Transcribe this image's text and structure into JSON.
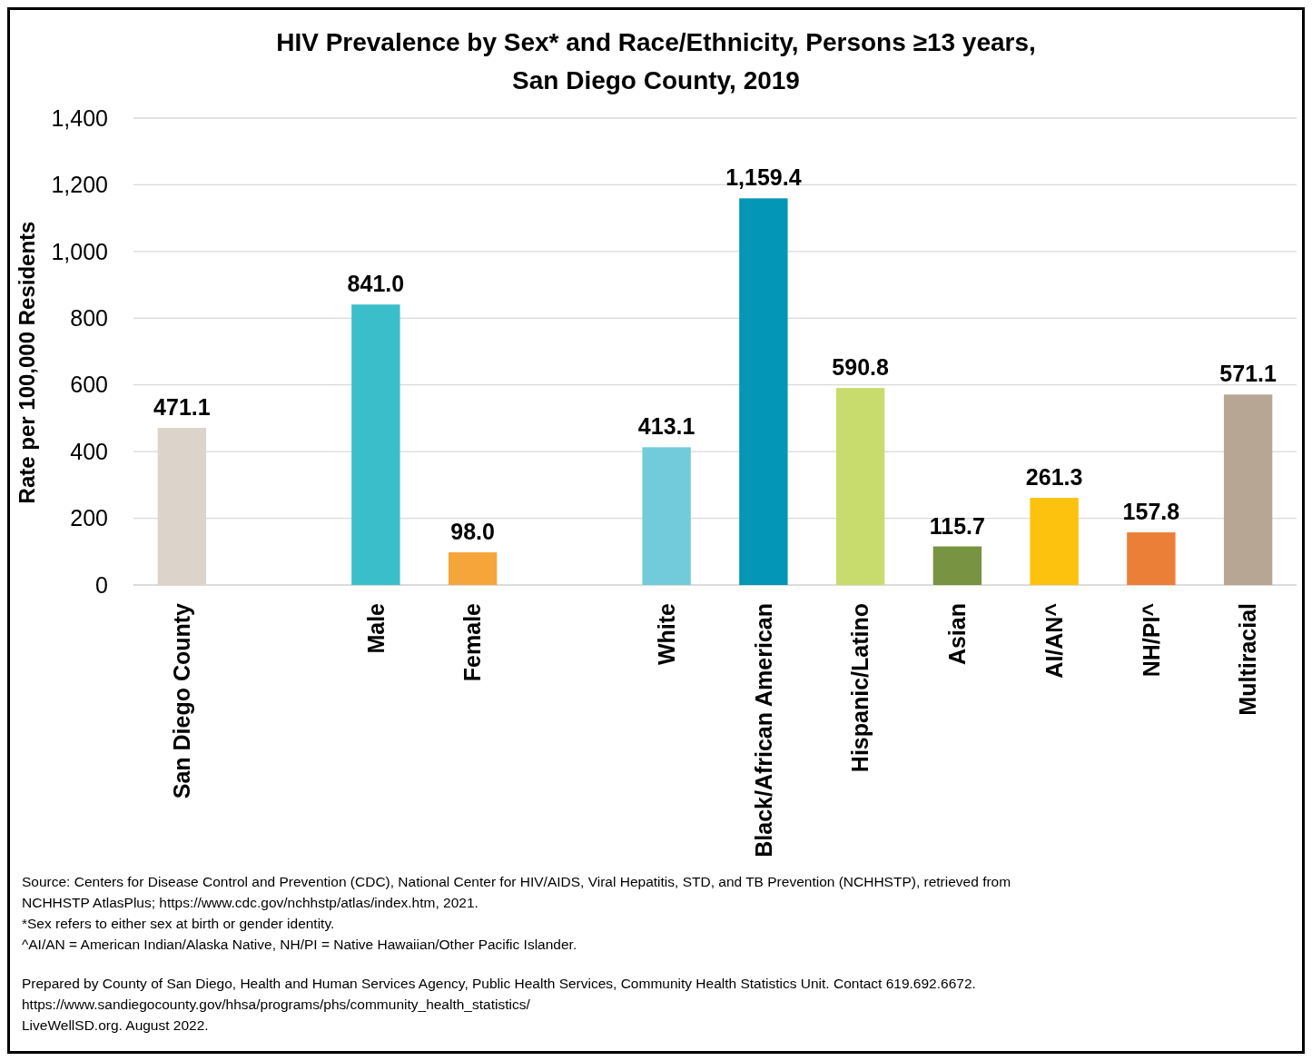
{
  "chart_data": {
    "type": "bar",
    "title": "HIV Prevalence by Sex* and Race/Ethnicity, Persons ≥13 years, San Diego County, 2019",
    "ylabel": "Rate per 100,000 Residents",
    "categories": [
      "San Diego County",
      null,
      "Male",
      "Female",
      null,
      "White",
      "Black/African American",
      "Hispanic/Latino",
      "Asian",
      "AI/AN^",
      "NH/PI^",
      "Multiracial"
    ],
    "values": [
      471.1,
      null,
      841.0,
      98.0,
      null,
      413.1,
      1159.4,
      590.8,
      115.7,
      261.3,
      157.8,
      571.1
    ],
    "value_labels": [
      "471.1",
      null,
      "841.0",
      "98.0",
      null,
      "413.1",
      "1,159.4",
      "590.8",
      "115.7",
      "261.3",
      "157.8",
      "571.1"
    ],
    "colors": [
      "#dcd3ca",
      null,
      "#3abfca",
      "#f6a53a",
      null,
      "#71cbdb",
      "#0396b6",
      "#c8dc6e",
      "#789342",
      "#fdc20d",
      "#ec7f37",
      "#b8a695"
    ],
    "ylim": [
      0,
      1400
    ],
    "yticks": [
      0,
      {
        "value": 200,
        "label": "200"
      },
      {
        "value": 400,
        "label": "400"
      },
      {
        "value": 600,
        "label": "600"
      },
      {
        "value": 800,
        "label": "800"
      },
      {
        "value": 1000,
        "label": "1,000"
      },
      {
        "value": 1200,
        "label": "1,200"
      },
      {
        "value": 1400,
        "label": "1,400"
      }
    ],
    "grid": "y",
    "annotations": [
      "Source: Centers for Disease Control and Prevention (CDC), National Center for HIV/AIDS, Viral Hepatitis, STD, and TB Prevention (NCHHSTP), retrieved from NCHHSTP AtlasPlus; https://www.cdc.gov/nchhstp/atlas/index.htm,  2021.",
      "*Sex refers to either sex at birth or gender identity.",
      "^AI/AN = American Indian/Alaska Native, NH/PI = Native Hawaiian/Other Pacific Islander.",
      "Prepared by County of San Diego, Health and Human Services Agency, Public Health Services, Community Health Statistics Unit. Contact 619.692.6672.",
      "https://www.sandiegocounty.gov/hhsa/programs/phs/community_health_statistics/",
      "LiveWellSD.org. August 2022."
    ]
  }
}
